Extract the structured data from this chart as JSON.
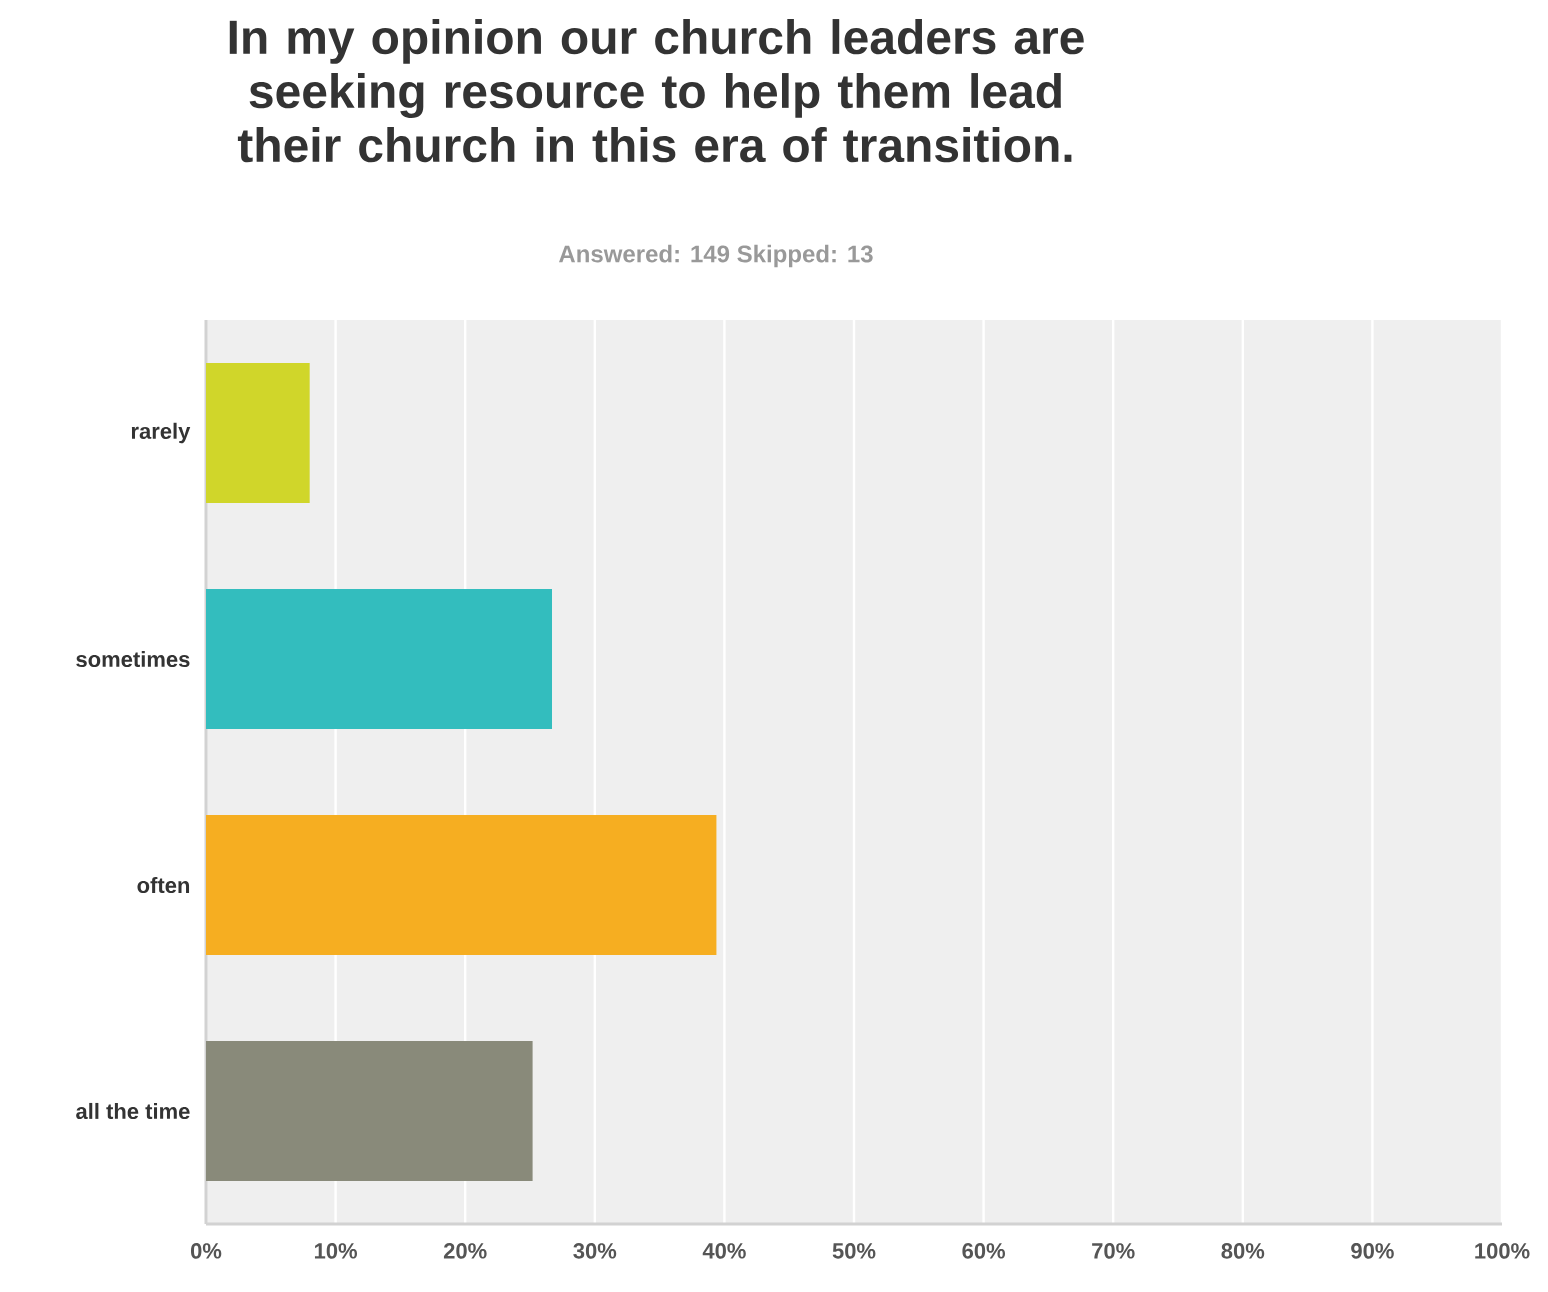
{
  "chart_data": {
    "type": "bar",
    "orientation": "horizontal",
    "title": "In my opinion our church leaders are seeking resource to help them lead their church in this era of transition.",
    "subtitle": "Answered: 149    Skipped: 13",
    "categories": [
      "rarely",
      "sometimes",
      "often",
      "all the time"
    ],
    "values": [
      8.0,
      26.7,
      39.4,
      25.2
    ],
    "colors": [
      "#d0d62a",
      "#33bdbe",
      "#f6ae21",
      "#898a7a"
    ],
    "xlim": [
      0,
      100
    ],
    "xticks": [
      {
        "value": 0,
        "label": "0%"
      },
      {
        "value": 10,
        "label": "10%"
      },
      {
        "value": 20,
        "label": "20%"
      },
      {
        "value": 30,
        "label": "30%"
      },
      {
        "value": 40,
        "label": "40%"
      },
      {
        "value": 50,
        "label": "50%"
      },
      {
        "value": 60,
        "label": "60%"
      },
      {
        "value": 70,
        "label": "70%"
      },
      {
        "value": 80,
        "label": "80%"
      },
      {
        "value": 90,
        "label": "90%"
      },
      {
        "value": 100,
        "label": "100%"
      }
    ],
    "grid": "x"
  }
}
